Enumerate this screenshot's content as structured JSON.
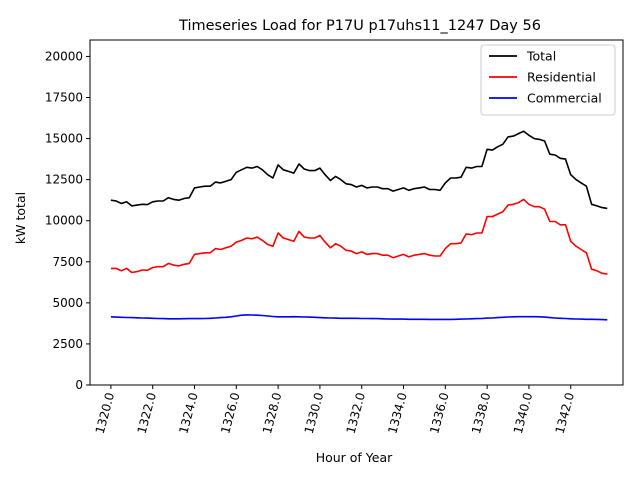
{
  "chart_data": {
    "type": "line",
    "title": "Timeseries Load for P17U p17uhs11_1247  Day 56",
    "xlabel": "Hour of Year",
    "ylabel": "kW total",
    "xlim": [
      1319.0,
      1344.5
    ],
    "ylim": [
      0,
      21000
    ],
    "x_ticks": [
      1320,
      1322,
      1324,
      1326,
      1328,
      1330,
      1332,
      1334,
      1336,
      1338,
      1340,
      1342
    ],
    "x_tick_labels": [
      "1320.0",
      "1322.0",
      "1324.0",
      "1326.0",
      "1328.0",
      "1330.0",
      "1332.0",
      "1334.0",
      "1336.0",
      "1338.0",
      "1340.0",
      "1342.0"
    ],
    "y_ticks": [
      0,
      2500,
      5000,
      7500,
      10000,
      12500,
      15000,
      17500,
      20000
    ],
    "y_tick_labels": [
      "0",
      "2500",
      "5000",
      "7500",
      "10000",
      "12500",
      "15000",
      "17500",
      "20000"
    ],
    "legend_position": "top-right",
    "x_start": 1320.0,
    "x_step": 0.25,
    "series": [
      {
        "name": "Total",
        "color": "#000000",
        "values": [
          11250,
          11200,
          11050,
          11150,
          10900,
          10950,
          11000,
          10980,
          11150,
          11200,
          11200,
          11400,
          11300,
          11250,
          11350,
          11400,
          12000,
          12050,
          12100,
          12100,
          12350,
          12300,
          12400,
          12500,
          12950,
          13100,
          13250,
          13200,
          13300,
          13100,
          12800,
          12600,
          13400,
          13100,
          13000,
          12900,
          13450,
          13150,
          13050,
          13050,
          13200,
          12800,
          12450,
          12700,
          12500,
          12250,
          12200,
          12050,
          12150,
          12000,
          12050,
          12050,
          11950,
          11950,
          11800,
          11900,
          12000,
          11850,
          11950,
          12000,
          12050,
          11900,
          11900,
          11850,
          12300,
          12600,
          12600,
          12650,
          13250,
          13200,
          13300,
          13300,
          14350,
          14300,
          14500,
          14650,
          15100,
          15150,
          15300,
          15450,
          15200,
          15000,
          14950,
          14850,
          14050,
          14000,
          13800,
          13750,
          12800,
          12500,
          12300,
          12100,
          11000,
          10900,
          10800,
          10750
        ]
      },
      {
        "name": "Residential",
        "color": "#ff0000",
        "values": [
          7100,
          7100,
          6950,
          7100,
          6850,
          6900,
          7000,
          6980,
          7150,
          7200,
          7200,
          7400,
          7300,
          7250,
          7350,
          7400,
          7950,
          8000,
          8050,
          8050,
          8300,
          8250,
          8350,
          8450,
          8700,
          8800,
          8950,
          8900,
          9000,
          8800,
          8550,
          8450,
          9250,
          8950,
          8850,
          8750,
          9350,
          9000,
          8950,
          8950,
          9100,
          8700,
          8350,
          8600,
          8450,
          8200,
          8150,
          8000,
          8100,
          7950,
          8000,
          8000,
          7900,
          7900,
          7750,
          7850,
          7950,
          7800,
          7900,
          7950,
          8000,
          7900,
          7850,
          7850,
          8300,
          8600,
          8600,
          8650,
          9200,
          9150,
          9250,
          9250,
          10250,
          10250,
          10400,
          10550,
          10950,
          11000,
          11100,
          11300,
          11000,
          10850,
          10850,
          10700,
          9950,
          9950,
          9750,
          9750,
          8750,
          8450,
          8250,
          8050,
          7050,
          6950,
          6800,
          6750
        ]
      },
      {
        "name": "Commercial",
        "color": "#0000ff",
        "values": [
          4150,
          4130,
          4120,
          4110,
          4100,
          4090,
          4080,
          4070,
          4060,
          4050,
          4040,
          4030,
          4030,
          4030,
          4035,
          4040,
          4040,
          4040,
          4050,
          4060,
          4080,
          4100,
          4120,
          4150,
          4200,
          4250,
          4270,
          4260,
          4250,
          4230,
          4200,
          4170,
          4150,
          4150,
          4150,
          4160,
          4150,
          4140,
          4130,
          4120,
          4100,
          4090,
          4080,
          4070,
          4060,
          4060,
          4060,
          4060,
          4050,
          4050,
          4040,
          4040,
          4030,
          4020,
          4010,
          4010,
          4010,
          4000,
          4000,
          4000,
          4000,
          3990,
          3990,
          3990,
          3990,
          3990,
          4000,
          4010,
          4020,
          4030,
          4040,
          4050,
          4070,
          4080,
          4100,
          4120,
          4140,
          4150,
          4160,
          4160,
          4160,
          4160,
          4150,
          4130,
          4100,
          4080,
          4060,
          4050,
          4030,
          4020,
          4010,
          4000,
          4000,
          3990,
          3980,
          3970
        ]
      }
    ]
  }
}
